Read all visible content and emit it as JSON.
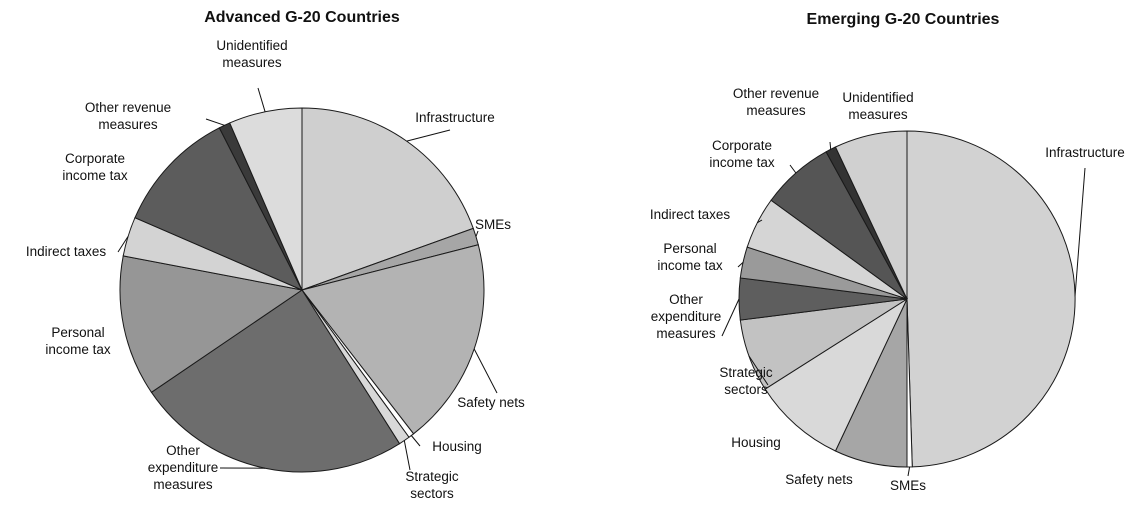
{
  "chart_data": [
    {
      "type": "pie",
      "title": "Advanced G-20 Countries",
      "slices": [
        {
          "label": "Infrastructure",
          "value": 19.5,
          "color": "#cfcfcf"
        },
        {
          "label": "SMEs",
          "value": 1.5,
          "color": "#a6a6a6"
        },
        {
          "label": "Safety nets",
          "value": 18.5,
          "color": "#b3b3b3"
        },
        {
          "label": "Housing",
          "value": 0.5,
          "color": "#ffffff"
        },
        {
          "label": "Strategic sectors",
          "value": 1.0,
          "color": "#d8d8d8"
        },
        {
          "label": "Other expenditure measures",
          "value": 24.5,
          "color": "#6d6d6d"
        },
        {
          "label": "Personal income tax",
          "value": 12.5,
          "color": "#969696"
        },
        {
          "label": "Indirect taxes",
          "value": 3.5,
          "color": "#d3d3d3"
        },
        {
          "label": "Corporate income tax",
          "value": 11.0,
          "color": "#5c5c5c"
        },
        {
          "label": "Other revenue measures",
          "value": 1.0,
          "color": "#3a3a3a"
        },
        {
          "label": "Unidentified measures",
          "value": 6.5,
          "color": "#dcdcdc"
        }
      ]
    },
    {
      "type": "pie",
      "title": "Emerging G-20 Countries",
      "slices": [
        {
          "label": "Infrastructure",
          "value": 49.5,
          "color": "#d2d2d2"
        },
        {
          "label": "SMEs",
          "value": 0.5,
          "color": "#ffffff"
        },
        {
          "label": "Safety nets",
          "value": 7.0,
          "color": "#a6a6a6"
        },
        {
          "label": "Housing",
          "value": 9.0,
          "color": "#d9d9d9"
        },
        {
          "label": "Strategic sectors",
          "value": 7.0,
          "color": "#c2c2c2"
        },
        {
          "label": "Other expenditure measures",
          "value": 4.0,
          "color": "#5e5e5e"
        },
        {
          "label": "Personal income tax",
          "value": 3.0,
          "color": "#9a9a9a"
        },
        {
          "label": "Indirect taxes",
          "value": 5.0,
          "color": "#d5d5d5"
        },
        {
          "label": "Corporate income tax",
          "value": 7.0,
          "color": "#555555"
        },
        {
          "label": "Other revenue measures",
          "value": 1.0,
          "color": "#333333"
        },
        {
          "label": "Unidentified measures",
          "value": 7.0,
          "color": "#d0d0d0"
        }
      ]
    }
  ]
}
